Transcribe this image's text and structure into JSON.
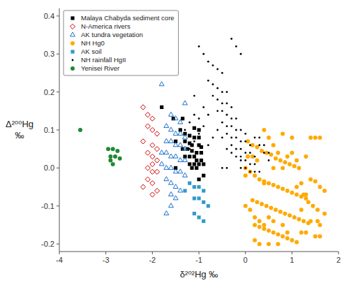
{
  "chart_data": {
    "type": "scatter",
    "xlabel": "δ²⁰²Hg ‰",
    "ylabel": "Δ²⁰⁰Hg\n‰",
    "xlim": [
      -4,
      2
    ],
    "ylim": [
      -0.22,
      0.42
    ],
    "xticks": [
      -4,
      -3,
      -2,
      -1,
      0,
      1,
      2
    ],
    "yticks": [
      -0.2,
      -0.1,
      {
        "value": 0.0,
        "label": "0.0"
      },
      0.1,
      0.2,
      0.3,
      0.4
    ],
    "grid": false,
    "legend": "upper left",
    "series": [
      {
        "name": "Malaya Chabyda sediment core",
        "color": "#000000",
        "marker": "square",
        "x": [
          -1.8,
          -1.55,
          -1.35,
          -1.4,
          -1.1,
          -1.0,
          -1.3,
          -1.2,
          -1.1,
          -1.0,
          -1.5,
          -1.3,
          -1.2,
          -1.15,
          -1.0,
          -0.95,
          -1.35,
          -1.25,
          -1.15,
          -1.05,
          -0.95,
          -1.3,
          -1.2,
          -1.1,
          -1.05,
          -0.95,
          -1.2,
          -1.1,
          -1.0,
          -0.9,
          -1.15,
          -1.05,
          -1.5,
          -0.9,
          -1.0
        ],
        "values": [
          0.16,
          0.13,
          0.13,
          0.1,
          0.105,
          0.1,
          0.09,
          0.085,
          0.08,
          0.08,
          0.07,
          0.07,
          0.065,
          0.06,
          0.06,
          0.055,
          0.05,
          0.05,
          0.045,
          0.04,
          0.04,
          0.03,
          0.03,
          0.03,
          0.02,
          0.02,
          0.01,
          0.01,
          0.01,
          0.01,
          0.0,
          0.0,
          0.0,
          -0.02,
          -0.03
        ]
      },
      {
        "name": "N-America rivers",
        "color": "#cc0000",
        "marker": "open-diamond",
        "x": [
          -2.2,
          -2.1,
          -2.0,
          -2.1,
          -2.0,
          -1.9,
          -2.2,
          -2.0,
          -1.9,
          -2.1,
          -2.0,
          -1.9,
          -2.0,
          -2.1,
          -2.0,
          -1.9,
          -2.1,
          -2.0,
          -2.2,
          -1.9,
          -2.0
        ],
        "values": [
          0.16,
          0.14,
          0.13,
          0.11,
          0.1,
          0.09,
          0.07,
          0.06,
          0.05,
          0.04,
          0.03,
          0.02,
          0.01,
          0.0,
          -0.01,
          -0.01,
          -0.03,
          -0.04,
          -0.05,
          -0.06,
          -0.07
        ]
      },
      {
        "name": "AK tundra vegetation",
        "color": "#1a6fcc",
        "marker": "open-triangle",
        "x": [
          -1.8,
          -1.3,
          -1.6,
          -1.5,
          -1.4,
          -1.7,
          -1.6,
          -1.5,
          -1.4,
          -1.3,
          -1.7,
          -1.6,
          -1.5,
          -1.4,
          -1.3,
          -1.8,
          -1.7,
          -1.6,
          -1.5,
          -1.4,
          -1.3,
          -1.8,
          -1.7,
          -1.6,
          -1.5,
          -1.4,
          -1.3,
          -1.7,
          -1.6,
          -1.5,
          -1.4,
          -1.6,
          -1.5,
          -1.6,
          -1.7
        ],
        "values": [
          0.22,
          0.17,
          0.14,
          0.13,
          0.12,
          0.11,
          0.1,
          0.09,
          0.09,
          0.08,
          0.07,
          0.07,
          0.06,
          0.06,
          0.05,
          0.04,
          0.04,
          0.03,
          0.03,
          0.02,
          0.02,
          0.01,
          0.0,
          0.0,
          -0.01,
          -0.01,
          -0.02,
          -0.03,
          -0.04,
          -0.05,
          -0.06,
          -0.07,
          -0.08,
          -0.1,
          -0.12
        ]
      },
      {
        "name": "NH Hg0",
        "color": "#ffaa00",
        "marker": "circle",
        "x": [
          0.05,
          0.15,
          0.25,
          0.35,
          0.45,
          0.55,
          0.65,
          0.75,
          0.85,
          0.95,
          1.05,
          1.15,
          0.1,
          0.2,
          0.3,
          0.4,
          0.5,
          0.6,
          0.7,
          0.8,
          0.9,
          1.0,
          1.1,
          1.2,
          1.3,
          0.15,
          0.25,
          0.35,
          0.45,
          0.55,
          0.65,
          0.75,
          0.85,
          0.95,
          1.05,
          1.15,
          1.25,
          1.35,
          0.2,
          0.3,
          0.4,
          0.5,
          0.6,
          0.7,
          0.8,
          0.9,
          1.0,
          1.1,
          0.3,
          0.5,
          0.7,
          1.35,
          1.45,
          1.55,
          1.25,
          1.4,
          1.5,
          1.6,
          0.4,
          0.5,
          1.5,
          1.6,
          1.55,
          1.6,
          1.7,
          0.05,
          0.15,
          0.25,
          0.0,
          0.0,
          0.0,
          0.6,
          0.7,
          0.8,
          0.8,
          0.9,
          1.0,
          1.0,
          1.1,
          1.2,
          1.3,
          0.4,
          0.6,
          1.1,
          1.4,
          1.4,
          1.2,
          1.2,
          0.4,
          0.5,
          0.3,
          0.2,
          0.1,
          0.8,
          1.3,
          0.2,
          0.9,
          1.7,
          0.6,
          1.3,
          1.5,
          1.6
        ],
        "values": [
          0.07,
          0.06,
          0.055,
          0.045,
          0.04,
          0.035,
          0.025,
          0.02,
          0.015,
          0.01,
          0.005,
          0.0,
          -0.01,
          -0.02,
          -0.03,
          -0.035,
          -0.04,
          -0.045,
          -0.05,
          -0.055,
          -0.06,
          -0.065,
          -0.07,
          -0.075,
          -0.08,
          -0.085,
          -0.09,
          -0.095,
          -0.1,
          -0.105,
          -0.11,
          -0.115,
          -0.12,
          -0.125,
          -0.13,
          -0.135,
          -0.14,
          -0.145,
          -0.15,
          -0.155,
          -0.16,
          -0.165,
          -0.17,
          -0.175,
          -0.18,
          -0.185,
          -0.19,
          -0.195,
          -0.2,
          -0.2,
          -0.2,
          -0.09,
          -0.1,
          -0.11,
          -0.07,
          0.08,
          0.08,
          0.08,
          0.1,
          0.08,
          -0.035,
          -0.05,
          -0.14,
          -0.15,
          -0.12,
          0.03,
          0.03,
          0.02,
          0.0,
          -0.02,
          -0.1,
          0.0,
          0.04,
          0.0,
          0.09,
          0.03,
          0.04,
          0.08,
          0.02,
          -0.04,
          0.03,
          -0.04,
          -0.14,
          -0.05,
          -0.03,
          -0.14,
          -0.11,
          -0.17,
          -0.15,
          -0.13,
          -0.14,
          -0.13,
          -0.11,
          -0.15,
          -0.17,
          -0.19,
          -0.17,
          -0.06,
          0.06,
          -0.07,
          -0.18,
          -0.18
        ]
      },
      {
        "name": "AK soil",
        "color": "#3399cc",
        "marker": "square",
        "x": [
          -1.1,
          -1.0,
          -0.9,
          -1.1,
          -1.0,
          -0.9,
          -1.1,
          -1.0,
          -0.9,
          -1.2,
          -0.8,
          -1.3
        ],
        "values": [
          -0.05,
          -0.05,
          -0.06,
          -0.08,
          -0.08,
          -0.09,
          -0.12,
          -0.13,
          -0.14,
          -0.04,
          -0.1,
          -0.06
        ]
      },
      {
        "name": "NH rainfall HgII",
        "color": "#000000",
        "marker": "dot",
        "x": [
          -1.0,
          -0.9,
          -0.8,
          -0.7,
          -0.6,
          -0.5,
          -0.8,
          -0.7,
          -0.6,
          -0.5,
          -0.4,
          -0.7,
          -0.6,
          -0.5,
          -0.4,
          -0.3,
          -0.9,
          -1.1,
          -0.6,
          -0.5,
          -0.4,
          -0.3,
          -0.2,
          -0.5,
          -0.4,
          -0.3,
          -0.2,
          -0.1,
          0.0,
          -0.4,
          -0.3,
          -0.2,
          -0.1,
          0.0,
          0.1,
          -0.3,
          -0.2,
          -0.1,
          0.0,
          0.1,
          0.2,
          -0.2,
          -0.1,
          0.0,
          0.1,
          0.2,
          -0.1,
          0.0,
          0.1,
          0.2,
          0.3,
          -0.8,
          -0.9,
          -1.0,
          -1.1,
          -0.6,
          -0.7,
          -0.8,
          -1.0,
          -1.2,
          -0.5,
          -0.3,
          -0.1,
          0.2,
          0.3,
          -0.4,
          0.4,
          0.5,
          -0.2,
          -0.3,
          -0.1,
          0.3,
          0.4,
          0.5,
          -1.1,
          -1.2,
          -1.3,
          -0.4,
          -0.5
        ],
        "values": [
          0.32,
          0.3,
          0.28,
          0.27,
          0.26,
          0.25,
          0.23,
          0.22,
          0.21,
          0.2,
          0.2,
          0.19,
          0.18,
          0.17,
          0.17,
          0.16,
          0.16,
          0.19,
          0.15,
          0.15,
          0.14,
          0.13,
          0.13,
          0.12,
          0.11,
          0.11,
          0.1,
          0.1,
          0.09,
          0.09,
          0.08,
          0.08,
          0.07,
          0.07,
          0.06,
          0.06,
          0.05,
          0.05,
          0.04,
          0.04,
          0.03,
          0.03,
          0.02,
          0.02,
          0.01,
          0.01,
          0.0,
          0.0,
          -0.01,
          -0.01,
          -0.01,
          0.14,
          0.11,
          0.09,
          0.07,
          0.1,
          0.08,
          0.06,
          0.13,
          0.05,
          0.08,
          0.04,
          0.03,
          0.08,
          0.06,
          0.05,
          0.04,
          0.02,
          0.32,
          0.34,
          0.3,
          0.08,
          0.06,
          0.04,
          0.14,
          0.12,
          0.1,
          0.0,
          0.0
        ]
      },
      {
        "name": "Yenisei River",
        "color": "#228833",
        "marker": "circle",
        "x": [
          -3.55,
          -2.95,
          -2.85,
          -2.75,
          -2.9,
          -2.8,
          -2.7,
          -2.85,
          -2.9
        ],
        "values": [
          0.1,
          0.05,
          0.05,
          0.045,
          0.03,
          0.03,
          0.025,
          0.01,
          0.02
        ]
      }
    ]
  }
}
